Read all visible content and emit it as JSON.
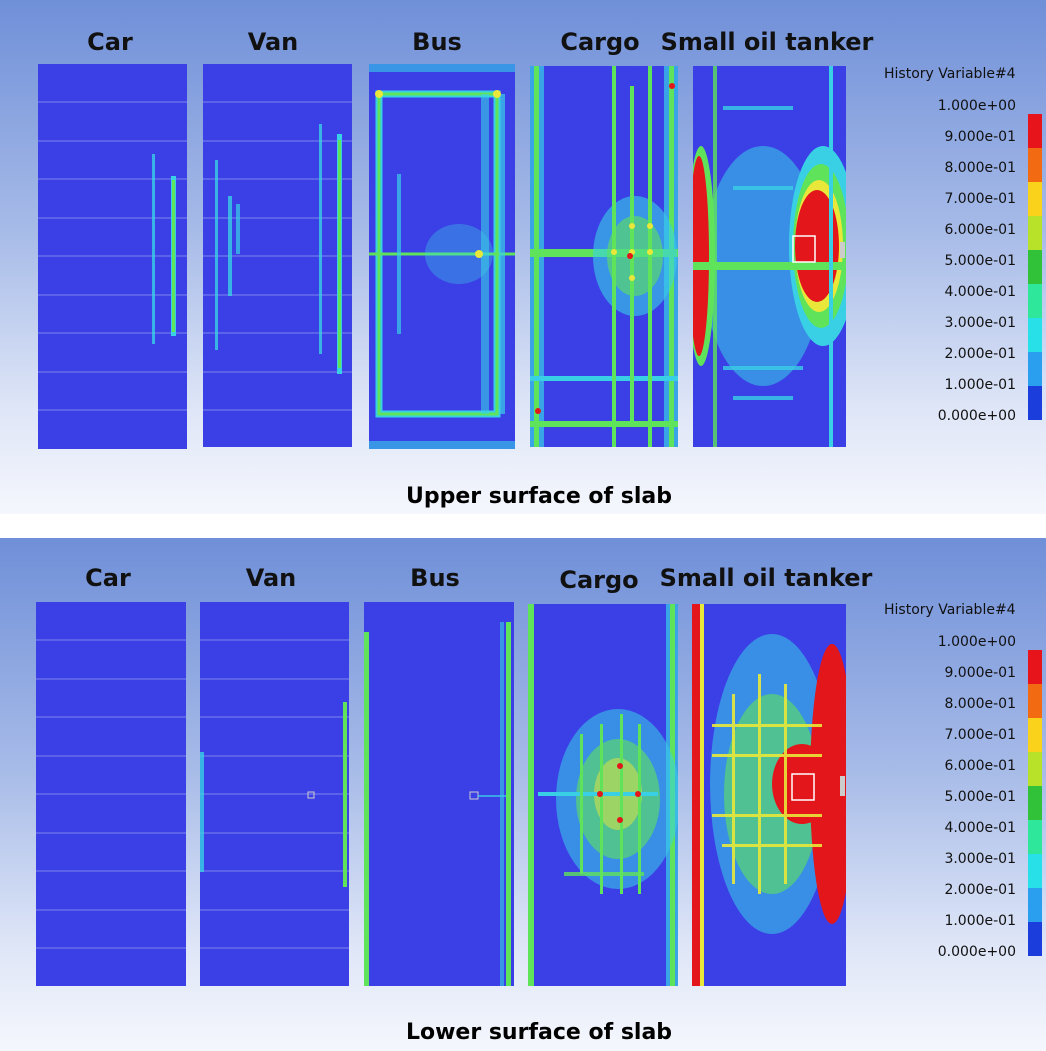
{
  "upper": {
    "labels": [
      "Car",
      "Van",
      "Bus",
      "Cargo",
      "Small oil tanker"
    ],
    "caption": "Upper surface of slab",
    "legend_title": "History Variable#4"
  },
  "lower": {
    "labels": [
      "Car",
      "Van",
      "Bus",
      "Cargo",
      "Small oil tanker"
    ],
    "caption": "Lower surface of slab",
    "legend_title": "History Variable#4"
  },
  "legend": {
    "ticks": [
      "1.000e+00",
      "9.000e-01",
      "8.000e-01",
      "7.000e-01",
      "6.000e-01",
      "5.000e-01",
      "4.000e-01",
      "3.000e-01",
      "2.000e-01",
      "1.000e-01",
      "0.000e+00"
    ],
    "colors": [
      "#e8141b",
      "#f26a12",
      "#fbd21b",
      "#b8e22a",
      "#32c23a",
      "#2ee79a",
      "#28e1e8",
      "#2a9ff0",
      "#1a3ddc"
    ]
  },
  "colors": {
    "slab_blue": "#3b3fe6",
    "cyan": "#39d0e6",
    "green": "#5fe35a",
    "yellow": "#e9e83a",
    "red": "#e3161b"
  }
}
